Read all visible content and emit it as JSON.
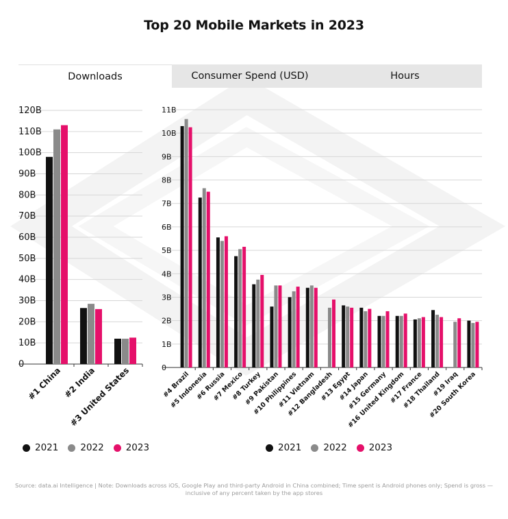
{
  "title": "Top 20 Mobile Markets in 2023",
  "tabs": [
    {
      "label": "Downloads",
      "active": true
    },
    {
      "label": "Consumer Spend (USD)",
      "active": false
    },
    {
      "label": "Hours",
      "active": false
    }
  ],
  "colors": {
    "2021": "#111111",
    "2022": "#8a8a8a",
    "2023": "#e5106a",
    "grid": "#d6d6d6",
    "axis": "#333333"
  },
  "legend": [
    "2021",
    "2022",
    "2023"
  ],
  "source": "Source: data.ai Intelligence | Note: Downloads across iOS, Google Play and third-party Android in China combined; Time spent is Android phones only; Spend is gross — inclusive of any percent taken by the app stores",
  "chart_data": [
    {
      "type": "bar",
      "categories": [
        "#1 China",
        "#2 India",
        "#3 United States"
      ],
      "series": [
        {
          "name": "2021",
          "values": [
            98,
            26.5,
            12
          ]
        },
        {
          "name": "2022",
          "values": [
            111,
            28.5,
            12
          ]
        },
        {
          "name": "2023",
          "values": [
            113,
            26,
            12.5
          ]
        }
      ],
      "ylim": [
        0,
        120
      ],
      "yticks": [
        0,
        10,
        20,
        30,
        40,
        50,
        60,
        70,
        80,
        90,
        100,
        110,
        120
      ],
      "yticklabels": [
        "0",
        "10B",
        "20B",
        "30B",
        "40B",
        "50B",
        "60B",
        "70B",
        "80B",
        "90B",
        "100B",
        "110B",
        "120B"
      ],
      "grid": true,
      "legend": "bottom-left"
    },
    {
      "type": "bar",
      "categories": [
        "#4 Brazil",
        "#5 Indonesia",
        "#6 Russia",
        "#7 Mexico",
        "#8 Turkey",
        "#9 Pakistan",
        "#10 Philippines",
        "#11 Vietnam",
        "#12 Bangladesh",
        "#13 Egypt",
        "#14 Japan",
        "#15 Germany",
        "#16 United Kingdom",
        "#17 France",
        "#18 Thailand",
        "#19 Iraq",
        "#20 South Korea"
      ],
      "series": [
        {
          "name": "2021",
          "values": [
            10.3,
            7.25,
            5.55,
            4.75,
            3.55,
            2.6,
            3.0,
            3.4,
            null,
            2.65,
            2.55,
            2.2,
            2.2,
            2.05,
            2.45,
            null,
            2.0
          ]
        },
        {
          "name": "2022",
          "values": [
            10.6,
            7.65,
            5.4,
            5.05,
            3.75,
            3.5,
            3.25,
            3.5,
            2.55,
            2.6,
            2.4,
            2.2,
            2.2,
            2.1,
            2.25,
            1.95,
            1.9
          ]
        },
        {
          "name": "2023",
          "values": [
            10.25,
            7.5,
            5.6,
            5.15,
            3.95,
            3.5,
            3.45,
            3.4,
            2.9,
            2.55,
            2.5,
            2.4,
            2.3,
            2.15,
            2.15,
            2.1,
            1.95
          ]
        }
      ],
      "ylim": [
        0,
        11
      ],
      "yticks": [
        0,
        1,
        2,
        3,
        4,
        5,
        6,
        7,
        8,
        9,
        10,
        11
      ],
      "yticklabels": [
        "0",
        "1B",
        "2B",
        "3B",
        "4B",
        "5B",
        "6B",
        "7B",
        "8B",
        "9B",
        "10B",
        "11B"
      ],
      "grid": true,
      "legend": "bottom-center"
    }
  ]
}
